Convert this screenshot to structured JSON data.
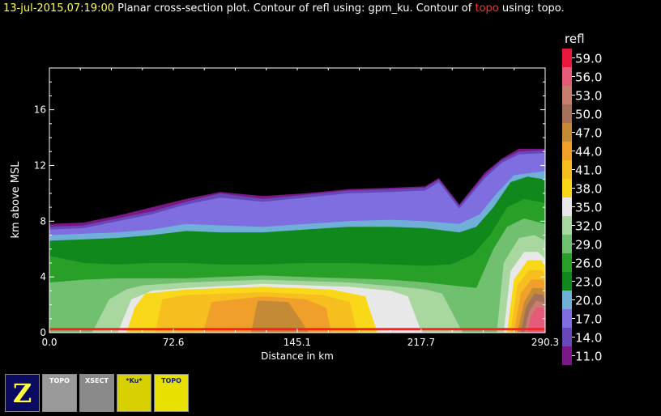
{
  "header": {
    "timestamp": "13-jul-2015,07:19:00",
    "text1": " Planar cross-section plot.  Contour of refl using: gpm_ku.  Contour of ",
    "topo_word": "topo",
    "text2": " using: topo."
  },
  "chart_data": {
    "type": "heatmap",
    "xlabel": "Distance in km",
    "ylabel": "km above MSL",
    "xlim": [
      0.0,
      290.3
    ],
    "ylim": [
      0,
      19
    ],
    "xticks": [
      "0.0",
      "72.6",
      "145.1",
      "217.7",
      "290.3"
    ],
    "xtick_values": [
      0.0,
      72.6,
      145.1,
      217.7,
      290.3
    ],
    "yticks": [
      0,
      4,
      8,
      12,
      16
    ],
    "legend": {
      "title": "refl",
      "levels": [
        "59.0",
        "56.0",
        "53.0",
        "50.0",
        "47.0",
        "44.0",
        "41.0",
        "38.0",
        "35.0",
        "32.0",
        "29.0",
        "26.0",
        "23.0",
        "20.0",
        "17.0",
        "14.0",
        "11.0"
      ],
      "colors": [
        "#e8183a",
        "#e45a78",
        "#c87e6e",
        "#a4705a",
        "#c48a36",
        "#f0a02a",
        "#f6be1e",
        "#f8d818",
        "#e8e8e8",
        "#a8d8a0",
        "#70c070",
        "#28a028",
        "#10881c",
        "#70b0d8",
        "#7e6ee0",
        "#6848b8",
        "#7a1888"
      ]
    },
    "layers": [
      {
        "level": "11.0",
        "color": "#7a1888",
        "top": [
          [
            0,
            7.8
          ],
          [
            20,
            7.9
          ],
          [
            40,
            8.4
          ],
          [
            60,
            9.0
          ],
          [
            80,
            9.6
          ],
          [
            100,
            10.1
          ],
          [
            125,
            9.8
          ],
          [
            150,
            10.0
          ],
          [
            175,
            10.3
          ],
          [
            200,
            10.4
          ],
          [
            220,
            10.5
          ],
          [
            228,
            11.1
          ],
          [
            240,
            9.2
          ],
          [
            255,
            11.5
          ],
          [
            265,
            12.5
          ],
          [
            275,
            13.2
          ],
          [
            290.3,
            13.2
          ]
        ]
      },
      {
        "level": "14.0",
        "color": "#6848b8",
        "top": [
          [
            0,
            7.6
          ],
          [
            20,
            7.7
          ],
          [
            40,
            8.2
          ],
          [
            60,
            8.7
          ],
          [
            80,
            9.4
          ],
          [
            100,
            10.0
          ],
          [
            125,
            9.6
          ],
          [
            150,
            9.9
          ],
          [
            175,
            10.2
          ],
          [
            200,
            10.3
          ],
          [
            220,
            10.4
          ],
          [
            228,
            11.0
          ],
          [
            240,
            9.1
          ],
          [
            255,
            11.3
          ],
          [
            265,
            12.4
          ],
          [
            275,
            13.0
          ],
          [
            290.3,
            13.1
          ]
        ]
      },
      {
        "level": "17.0",
        "color": "#7e6ee0",
        "top": [
          [
            0,
            7.4
          ],
          [
            20,
            7.5
          ],
          [
            40,
            8.0
          ],
          [
            60,
            8.5
          ],
          [
            80,
            9.2
          ],
          [
            100,
            9.7
          ],
          [
            125,
            9.4
          ],
          [
            150,
            9.7
          ],
          [
            175,
            10.0
          ],
          [
            200,
            10.1
          ],
          [
            220,
            10.2
          ],
          [
            228,
            10.8
          ],
          [
            240,
            8.9
          ],
          [
            255,
            11.1
          ],
          [
            265,
            12.2
          ],
          [
            275,
            12.8
          ],
          [
            290.3,
            12.9
          ]
        ]
      },
      {
        "level": "20.0",
        "color": "#70b0d8",
        "top": [
          [
            0,
            7.0
          ],
          [
            20,
            7.1
          ],
          [
            40,
            7.2
          ],
          [
            60,
            7.4
          ],
          [
            80,
            7.8
          ],
          [
            100,
            7.7
          ],
          [
            125,
            7.6
          ],
          [
            150,
            7.8
          ],
          [
            175,
            8.0
          ],
          [
            200,
            8.1
          ],
          [
            220,
            8.0
          ],
          [
            240,
            7.8
          ],
          [
            252,
            8.5
          ],
          [
            262,
            10.0
          ],
          [
            272,
            11.3
          ],
          [
            290.3,
            11.6
          ]
        ]
      },
      {
        "level": "23.0",
        "color": "#10881c",
        "top": [
          [
            0,
            6.6
          ],
          [
            20,
            6.7
          ],
          [
            40,
            6.8
          ],
          [
            60,
            7.0
          ],
          [
            80,
            7.3
          ],
          [
            100,
            7.2
          ],
          [
            125,
            7.2
          ],
          [
            150,
            7.4
          ],
          [
            175,
            7.6
          ],
          [
            200,
            7.6
          ],
          [
            220,
            7.5
          ],
          [
            240,
            7.2
          ],
          [
            250,
            7.6
          ],
          [
            260,
            9.0
          ],
          [
            270,
            10.8
          ],
          [
            280,
            11.2
          ],
          [
            290.3,
            11.0
          ]
        ]
      },
      {
        "level": "26.0",
        "color": "#28a028",
        "top": [
          [
            0,
            5.5
          ],
          [
            20,
            5.0
          ],
          [
            40,
            4.9
          ],
          [
            60,
            5.0
          ],
          [
            80,
            5.0
          ],
          [
            100,
            4.9
          ],
          [
            125,
            4.9
          ],
          [
            150,
            5.0
          ],
          [
            175,
            5.0
          ],
          [
            200,
            4.9
          ],
          [
            220,
            4.8
          ],
          [
            235,
            4.9
          ],
          [
            248,
            5.6
          ],
          [
            258,
            7.0
          ],
          [
            268,
            9.0
          ],
          [
            278,
            9.6
          ],
          [
            290.3,
            9.3
          ]
        ]
      },
      {
        "level": "29.0",
        "color": "#70c070",
        "top": [
          [
            0,
            3.6
          ],
          [
            20,
            3.8
          ],
          [
            40,
            3.9
          ],
          [
            60,
            3.9
          ],
          [
            80,
            3.9
          ],
          [
            100,
            4.0
          ],
          [
            125,
            4.1
          ],
          [
            150,
            4.0
          ],
          [
            175,
            3.9
          ],
          [
            200,
            3.8
          ],
          [
            220,
            3.6
          ],
          [
            235,
            3.4
          ],
          [
            250,
            3.2
          ],
          [
            260,
            6.0
          ],
          [
            268,
            7.6
          ],
          [
            278,
            8.2
          ],
          [
            290.3,
            7.8
          ]
        ]
      },
      {
        "level": "32.0",
        "color": "#a8d8a0",
        "top": [
          [
            0,
            0
          ],
          [
            25,
            0
          ],
          [
            35,
            2.4
          ],
          [
            45,
            3.1
          ],
          [
            55,
            3.4
          ],
          [
            80,
            3.6
          ],
          [
            125,
            3.8
          ],
          [
            175,
            3.6
          ],
          [
            205,
            3.3
          ],
          [
            220,
            3.1
          ],
          [
            230,
            2.8
          ],
          [
            242,
            0
          ],
          [
            262,
            0
          ],
          [
            266,
            5.0
          ],
          [
            275,
            6.8
          ],
          [
            284,
            7.0
          ],
          [
            290.3,
            6.6
          ]
        ]
      },
      {
        "level": "35.0",
        "color": "#e8e8e8",
        "top": [
          [
            0,
            0
          ],
          [
            40,
            0
          ],
          [
            48,
            2.4
          ],
          [
            60,
            3.0
          ],
          [
            80,
            3.2
          ],
          [
            125,
            3.5
          ],
          [
            175,
            3.3
          ],
          [
            200,
            3.0
          ],
          [
            210,
            2.6
          ],
          [
            218,
            0
          ],
          [
            266,
            0
          ],
          [
            270,
            4.4
          ],
          [
            278,
            5.8
          ],
          [
            286,
            5.8
          ],
          [
            290.3,
            5.3
          ]
        ]
      },
      {
        "level": "38.0",
        "color": "#f8d818",
        "top": [
          [
            0,
            0
          ],
          [
            45,
            0
          ],
          [
            50,
            1.8
          ],
          [
            56,
            2.8
          ],
          [
            80,
            3.1
          ],
          [
            125,
            3.3
          ],
          [
            165,
            3.1
          ],
          [
            185,
            2.6
          ],
          [
            192,
            0
          ],
          [
            268,
            0
          ],
          [
            272,
            3.8
          ],
          [
            280,
            5.2
          ],
          [
            288,
            5.2
          ],
          [
            290.3,
            4.8
          ]
        ]
      },
      {
        "level": "41.0",
        "color": "#f6be1e",
        "top": [
          [
            0,
            0
          ],
          [
            62,
            0
          ],
          [
            66,
            2.4
          ],
          [
            80,
            2.7
          ],
          [
            125,
            2.9
          ],
          [
            160,
            2.7
          ],
          [
            176,
            2.2
          ],
          [
            180,
            0
          ],
          [
            270,
            0
          ],
          [
            274,
            3.4
          ],
          [
            281,
            4.5
          ],
          [
            288,
            4.5
          ],
          [
            290.3,
            4.1
          ]
        ]
      },
      {
        "level": "44.0",
        "color": "#f0a02a",
        "top": [
          [
            0,
            0
          ],
          [
            90,
            0
          ],
          [
            95,
            2.2
          ],
          [
            125,
            2.6
          ],
          [
            150,
            2.4
          ],
          [
            162,
            1.8
          ],
          [
            165,
            0
          ],
          [
            272,
            0
          ],
          [
            276,
            2.8
          ],
          [
            282,
            3.8
          ],
          [
            289,
            3.8
          ],
          [
            290.3,
            3.5
          ]
        ]
      },
      {
        "level": "47.0",
        "color": "#c48a36",
        "top": [
          [
            0,
            0
          ],
          [
            118,
            0
          ],
          [
            122,
            2.3
          ],
          [
            140,
            2.2
          ],
          [
            152,
            0
          ],
          [
            274,
            0
          ],
          [
            278,
            2.2
          ],
          [
            283,
            3.2
          ],
          [
            289,
            3.2
          ],
          [
            290.3,
            2.8
          ]
        ]
      },
      {
        "level": "50.0",
        "color": "#a4705a",
        "top": [
          [
            0,
            0
          ],
          [
            276,
            0
          ],
          [
            279,
            1.8
          ],
          [
            284,
            2.8
          ],
          [
            289,
            2.7
          ],
          [
            290.3,
            2.3
          ]
        ]
      },
      {
        "level": "53.0",
        "color": "#c87e6e",
        "top": [
          [
            0,
            0
          ],
          [
            278,
            0
          ],
          [
            281,
            1.5
          ],
          [
            285,
            2.3
          ],
          [
            289,
            2.2
          ],
          [
            290.3,
            1.8
          ]
        ]
      },
      {
        "level": "56.0",
        "color": "#e45a78",
        "top": [
          [
            0,
            0
          ],
          [
            280,
            0
          ],
          [
            282,
            1.2
          ],
          [
            285,
            1.8
          ],
          [
            289,
            1.8
          ],
          [
            290.3,
            1.4
          ]
        ]
      }
    ]
  },
  "toolbar": [
    {
      "label": "Z",
      "icon": "z-logo-icon"
    },
    {
      "label": "TOPO",
      "icon": "topo-xsect-icon"
    },
    {
      "label": "XSECT",
      "icon": "xsect-nex-icon"
    },
    {
      "label": "*Ku*",
      "icon": "gpm-ku-xsect-icon"
    },
    {
      "label": "TOPO",
      "icon": "topo-xsect-active-icon"
    }
  ]
}
